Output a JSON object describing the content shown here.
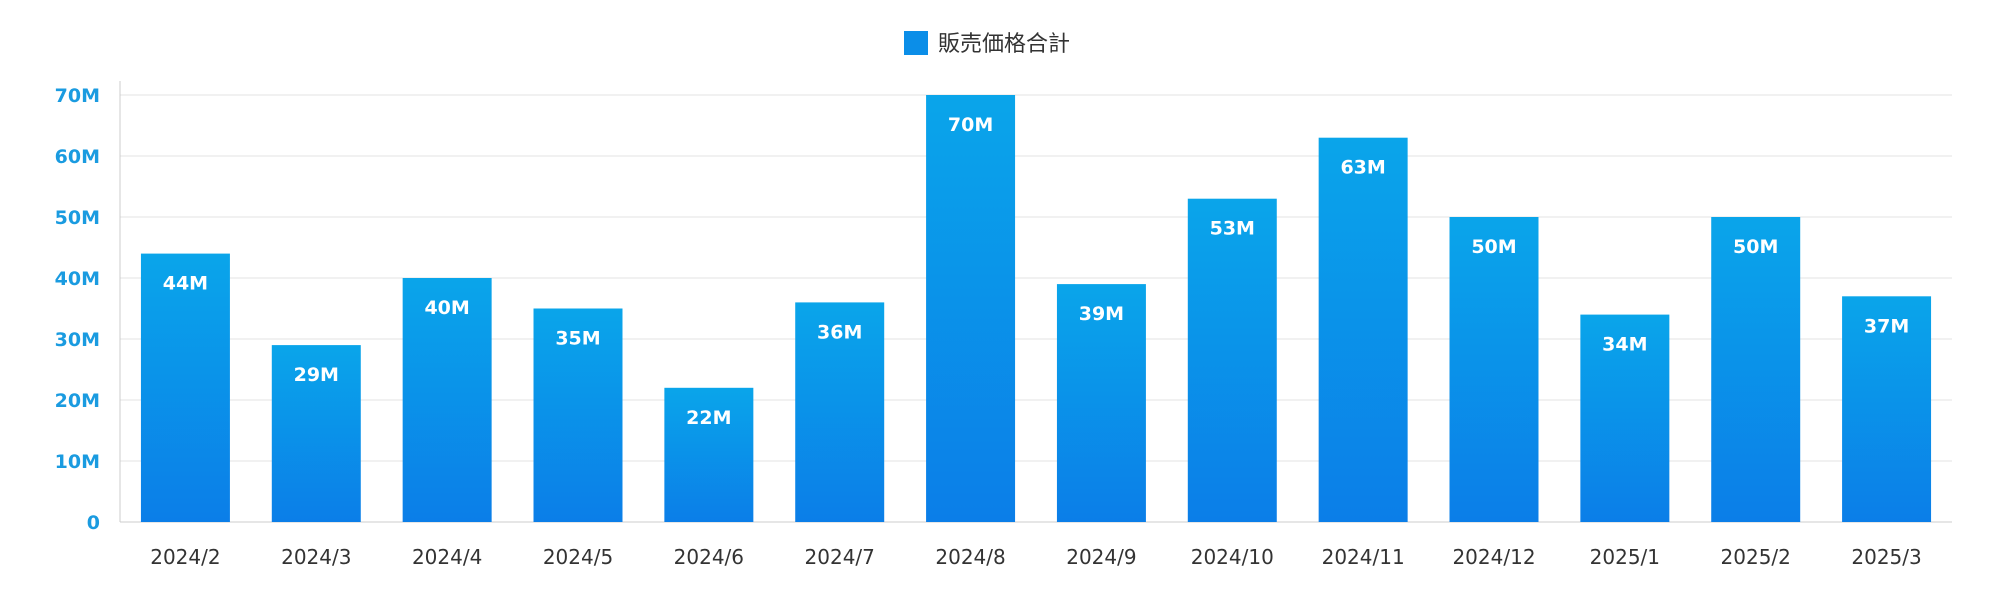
{
  "chart_data": {
    "type": "bar",
    "title": "",
    "xlabel": "",
    "ylabel": "",
    "legend": [
      {
        "name": "販売価格合計",
        "position": "top-center"
      }
    ],
    "categories": [
      "2024/2",
      "2024/3",
      "2024/4",
      "2024/5",
      "2024/6",
      "2024/7",
      "2024/8",
      "2024/9",
      "2024/10",
      "2024/11",
      "2024/12",
      "2025/1",
      "2025/2",
      "2025/3"
    ],
    "values": [
      44,
      29,
      40,
      35,
      22,
      36,
      70,
      39,
      53,
      63,
      50,
      34,
      50,
      37
    ],
    "data_labels": [
      "44M",
      "29M",
      "40M",
      "35M",
      "22M",
      "36M",
      "70M",
      "39M",
      "53M",
      "63M",
      "50M",
      "34M",
      "50M",
      "37M"
    ],
    "unit": "M",
    "ylim": [
      0,
      70
    ],
    "yticks": [
      0,
      10,
      20,
      30,
      40,
      50,
      60,
      70
    ],
    "ytick_labels": [
      "0",
      "10M",
      "20M",
      "30M",
      "40M",
      "50M",
      "60M",
      "70M"
    ],
    "grid": true,
    "colors": {
      "bar_top": "#0aa5ea",
      "bar_bottom": "#0b7ee8",
      "tick_y": "#1a9be0",
      "legend_swatch": "#0b8ee8"
    }
  }
}
